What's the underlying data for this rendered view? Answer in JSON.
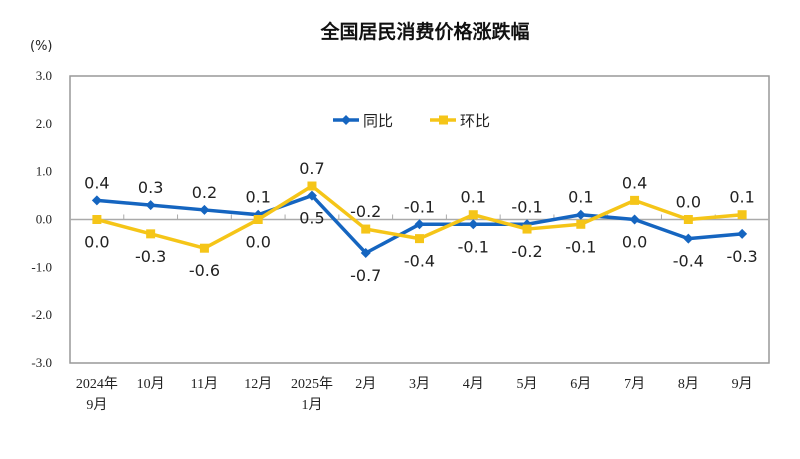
{
  "chart_data": {
    "type": "line",
    "title": "全国居民消费价格涨跌幅",
    "ylabel": "(%)",
    "ylim": [
      -3.0,
      3.0
    ],
    "yticks": [
      "3.0",
      "2.0",
      "1.0",
      "0.0",
      "-1.0",
      "-2.0",
      "-3.0"
    ],
    "categories": [
      [
        "2024年",
        "9月"
      ],
      [
        "10月"
      ],
      [
        "11月"
      ],
      [
        "12月"
      ],
      [
        "2025年",
        "1月"
      ],
      [
        "2月"
      ],
      [
        "3月"
      ],
      [
        "4月"
      ],
      [
        "5月"
      ],
      [
        "6月"
      ],
      [
        "7月"
      ],
      [
        "8月"
      ],
      [
        "9月"
      ]
    ],
    "grid": false,
    "legend_position": "top-center",
    "series": [
      {
        "name": "同比",
        "color": "#1565C0",
        "marker": "diamond",
        "values": [
          0.4,
          0.3,
          0.2,
          0.1,
          0.5,
          -0.7,
          -0.1,
          -0.1,
          -0.1,
          0.1,
          0.0,
          -0.4,
          -0.3
        ]
      },
      {
        "name": "环比",
        "color": "#F5C518",
        "marker": "square",
        "values": [
          0.0,
          -0.3,
          -0.6,
          0.0,
          0.7,
          -0.2,
          -0.4,
          0.1,
          -0.2,
          -0.1,
          0.4,
          0.0,
          0.1
        ]
      }
    ]
  }
}
